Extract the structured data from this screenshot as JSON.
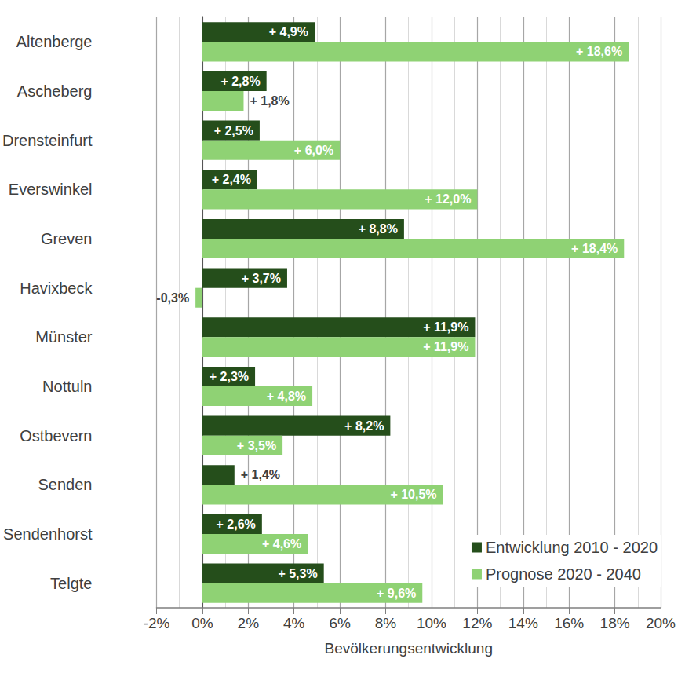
{
  "chart_data": {
    "type": "bar",
    "orientation": "horizontal",
    "categories": [
      "Altenberge",
      "Ascheberg",
      "Drensteinfurt",
      "Everswinkel",
      "Greven",
      "Havixbeck",
      "Münster",
      "Nottuln",
      "Ostbevern",
      "Senden",
      "Sendenhorst",
      "Telgte"
    ],
    "series": [
      {
        "name": "Entwicklung 2010 - 2020",
        "color": "#254e1b",
        "values": [
          4.9,
          2.8,
          2.5,
          2.4,
          8.8,
          3.7,
          11.9,
          2.3,
          8.2,
          1.4,
          2.6,
          5.3
        ],
        "value_labels": [
          "+ 4,9%",
          "+ 2,8%",
          "+ 2,5%",
          "+ 2,4%",
          "+ 8,8%",
          "+ 3,7%",
          "+ 11,9%",
          "+ 2,3%",
          "+ 8,2%",
          "+ 1,4%",
          "+ 2,6%",
          "+ 5,3%"
        ]
      },
      {
        "name": "Prognose 2020 - 2040",
        "color": "#8fd274",
        "values": [
          18.6,
          1.8,
          6.0,
          12.0,
          18.4,
          -0.3,
          11.9,
          4.8,
          3.5,
          10.5,
          4.6,
          9.6
        ],
        "value_labels": [
          "+ 18,6%",
          "+ 1,8%",
          "+ 6,0%",
          "+ 12,0%",
          "+ 18,4%",
          "-0,3%",
          "+ 11,9%",
          "+ 4,8%",
          "+ 3,5%",
          "+ 10,5%",
          "+ 4,6%",
          "+ 9,6%"
        ]
      }
    ],
    "xlabel": "Bevölkerungsentwicklung",
    "xlim": [
      -2,
      20
    ],
    "xticks": [
      {
        "value": -2,
        "label": "-2%"
      },
      {
        "value": 0,
        "label": "0%"
      },
      {
        "value": 2,
        "label": "2%"
      },
      {
        "value": 4,
        "label": "4%"
      },
      {
        "value": 6,
        "label": "6%"
      },
      {
        "value": 8,
        "label": "8%"
      },
      {
        "value": 10,
        "label": "10%"
      },
      {
        "value": 12,
        "label": "12%"
      },
      {
        "value": 14,
        "label": "14%"
      },
      {
        "value": 16,
        "label": "16%"
      },
      {
        "value": 18,
        "label": "18%"
      },
      {
        "value": 20,
        "label": "20%"
      }
    ],
    "grid": true,
    "legend": "lower right",
    "data_labels": true
  }
}
